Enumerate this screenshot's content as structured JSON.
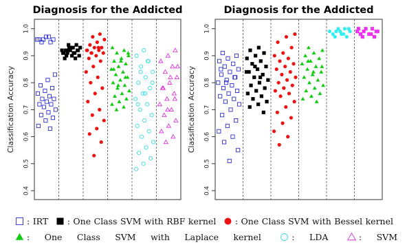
{
  "chart_data": [
    {
      "type": "strip",
      "title": "Diagnosis for the Addicted",
      "ylabel": "Classification Accuracy",
      "ylim": [
        0.367,
        1.035
      ],
      "yticks": [
        0.4,
        0.5,
        0.6,
        0.7,
        0.8,
        0.9,
        {
          "value": 1,
          "label": "1.0"
        }
      ],
      "series": [
        {
          "color": "#2b2bd0",
          "marker": "square-open",
          "values": [
            0.96,
            0.97,
            0.95,
            0.96,
            0.97,
            0.96,
            0.95,
            0.96,
            0.83,
            0.81,
            0.79,
            0.78,
            0.77,
            0.76,
            0.75,
            0.74,
            0.74,
            0.73,
            0.72,
            0.72,
            0.71,
            0.7,
            0.69,
            0.68,
            0.67,
            0.66,
            0.64,
            0.63
          ]
        },
        {
          "color": "#000000",
          "marker": "square",
          "values": [
            0.94,
            0.93,
            0.93,
            0.92,
            0.92,
            0.92,
            0.91,
            0.91,
            0.91,
            0.9,
            0.9,
            0.89,
            0.94,
            0.93,
            0.92,
            0.91,
            0.9,
            0.92,
            0.93,
            0.91,
            0.89,
            0.92
          ]
        },
        {
          "color": "#ee1111",
          "marker": "circle",
          "values": [
            0.98,
            0.97,
            0.96,
            0.95,
            0.94,
            0.93,
            0.93,
            0.92,
            0.92,
            0.91,
            0.91,
            0.9,
            0.89,
            0.88,
            0.86,
            0.84,
            0.82,
            0.8,
            0.78,
            0.76,
            0.73,
            0.7,
            0.68,
            0.66,
            0.63,
            0.61,
            0.58,
            0.53,
            0.92,
            0.93,
            0.91
          ]
        },
        {
          "color": "#11cc11",
          "marker": "triangle",
          "values": [
            0.93,
            0.92,
            0.91,
            0.9,
            0.89,
            0.88,
            0.87,
            0.86,
            0.85,
            0.84,
            0.83,
            0.82,
            0.81,
            0.8,
            0.79,
            0.78,
            0.77,
            0.76,
            0.75,
            0.74,
            0.73,
            0.72,
            0.71,
            0.7,
            0.91,
            0.88,
            0.85,
            0.82,
            0.79
          ]
        },
        {
          "color": "#33dddd",
          "marker": "circle-open",
          "values": [
            0.92,
            0.9,
            0.88,
            0.86,
            0.84,
            0.82,
            0.8,
            0.78,
            0.76,
            0.74,
            0.72,
            0.7,
            0.68,
            0.66,
            0.64,
            0.62,
            0.6,
            0.58,
            0.56,
            0.54,
            0.52,
            0.5,
            0.48,
            0.88,
            0.84,
            0.8,
            0.76,
            0.72
          ]
        },
        {
          "color": "#dd33dd",
          "marker": "triangle-open",
          "values": [
            0.92,
            0.9,
            0.88,
            0.86,
            0.84,
            0.82,
            0.8,
            0.78,
            0.76,
            0.74,
            0.72,
            0.7,
            0.68,
            0.66,
            0.64,
            0.62,
            0.6,
            0.58,
            0.86,
            0.82,
            0.78,
            0.74,
            0.7
          ]
        }
      ]
    },
    {
      "type": "strip",
      "title": "Diagnosis for the Addicted",
      "ylabel": "Classification Accuracy",
      "ylim": [
        0.367,
        1.035
      ],
      "yticks": [
        0.4,
        0.5,
        0.6,
        0.7,
        0.8,
        0.9,
        {
          "value": 1,
          "label": "1.0"
        }
      ],
      "series": [
        {
          "color": "#2b2bd0",
          "marker": "square-open",
          "values": [
            0.91,
            0.9,
            0.89,
            0.88,
            0.87,
            0.86,
            0.85,
            0.84,
            0.83,
            0.82,
            0.81,
            0.8,
            0.79,
            0.78,
            0.77,
            0.76,
            0.75,
            0.74,
            0.73,
            0.72,
            0.7,
            0.68,
            0.66,
            0.64,
            0.62,
            0.6,
            0.58,
            0.55,
            0.51,
            0.85,
            0.82,
            0.8
          ]
        },
        {
          "color": "#000000",
          "marker": "square",
          "values": [
            0.93,
            0.92,
            0.91,
            0.9,
            0.89,
            0.88,
            0.87,
            0.86,
            0.85,
            0.84,
            0.83,
            0.82,
            0.81,
            0.8,
            0.79,
            0.78,
            0.77,
            0.76,
            0.75,
            0.74,
            0.73,
            0.72,
            0.71,
            0.69,
            0.86,
            0.84,
            0.82
          ]
        },
        {
          "color": "#ee1111",
          "marker": "circle",
          "values": [
            0.98,
            0.97,
            0.95,
            0.93,
            0.91,
            0.9,
            0.89,
            0.88,
            0.87,
            0.86,
            0.85,
            0.84,
            0.83,
            0.82,
            0.81,
            0.8,
            0.79,
            0.78,
            0.77,
            0.76,
            0.75,
            0.73,
            0.71,
            0.69,
            0.67,
            0.65,
            0.62,
            0.6,
            0.57
          ]
        },
        {
          "color": "#11cc11",
          "marker": "triangle",
          "values": [
            0.93,
            0.92,
            0.91,
            0.9,
            0.89,
            0.88,
            0.87,
            0.86,
            0.85,
            0.84,
            0.83,
            0.82,
            0.81,
            0.8,
            0.79,
            0.78,
            0.77,
            0.76,
            0.75,
            0.74,
            0.73,
            0.88,
            0.86,
            0.84
          ]
        },
        {
          "color": "#33eeee",
          "marker": "circle",
          "values": [
            1.0,
            0.99,
            0.99,
            0.98,
            0.98,
            0.97,
            1.0,
            0.99,
            0.98,
            0.97,
            1.0,
            0.99
          ]
        },
        {
          "color": "#ee33ee",
          "marker": "square",
          "values": [
            1.0,
            1.0,
            0.99,
            0.99,
            0.98,
            0.98,
            0.97,
            1.0,
            0.99,
            0.98,
            0.97,
            0.99
          ]
        }
      ]
    }
  ],
  "legend": [
    {
      "marker": "square-open",
      "color": "#2b2bd0",
      "label": ": IRT"
    },
    {
      "marker": "square",
      "color": "#000000",
      "label": ": One Class SVM with RBF kernel"
    },
    {
      "marker": "circle",
      "color": "#ee1111",
      "label": ": One Class SVM with Bessel kernel"
    },
    {
      "marker": "triangle",
      "color": "#11cc11",
      "label": ": One Class SVM with Laplace kernel"
    },
    {
      "marker": "circle-open",
      "color": "#33dddd",
      "label": ": LDA"
    },
    {
      "marker": "triangle-open",
      "color": "#dd33dd",
      "label": ": SVM"
    }
  ]
}
